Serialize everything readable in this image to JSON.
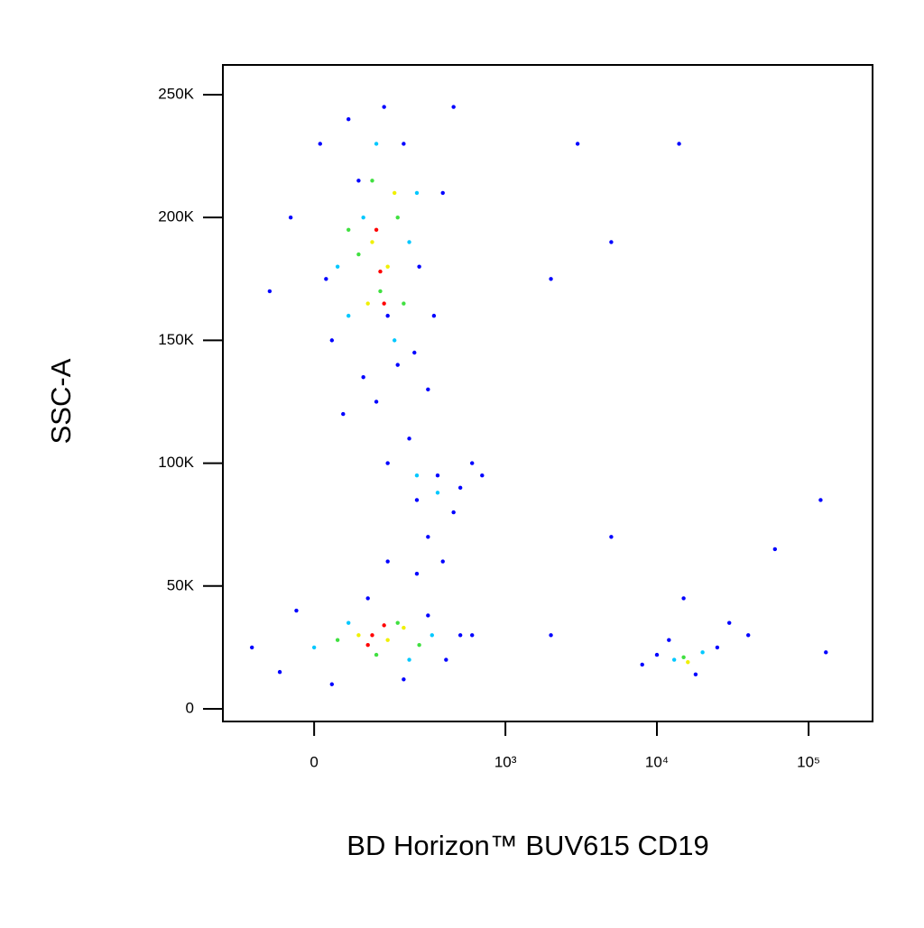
{
  "chart_data": {
    "type": "scatter",
    "x_label": "BD Horizon™ BUV615 CD19",
    "y_label": "SSC-A",
    "x_scale": "biexponential",
    "xlim": [
      -206,
      264000
    ],
    "ylim": [
      -5140,
      262100
    ],
    "xticks": [
      0,
      {
        "value": 1000,
        "label": "10³"
      },
      {
        "value": 10000,
        "label": "10⁴"
      },
      {
        "value": 100000,
        "label": "10⁵"
      }
    ],
    "yticks": [
      0,
      {
        "value": 50000,
        "label": "50K"
      },
      {
        "value": 100000,
        "label": "100K"
      },
      {
        "value": 150000,
        "label": "150K"
      },
      {
        "value": 200000,
        "label": "200K"
      },
      {
        "value": 250000,
        "label": "250K"
      }
    ],
    "series": [
      {
        "color": "#0000ff",
        "x": [
          -40,
          10,
          30,
          60,
          90,
          140,
          200,
          260,
          330,
          380,
          20,
          50,
          120,
          180,
          300,
          -80,
          450,
          80,
          240,
          150,
          150,
          250,
          350,
          450,
          600,
          220,
          300,
          500,
          380,
          700,
          -120,
          -60,
          -30,
          30,
          100,
          200,
          300,
          400,
          500,
          600,
          250,
          150,
          8000,
          12000,
          18000,
          25000,
          30000,
          15000,
          10000,
          40000,
          3000,
          5000,
          2000,
          60000,
          120000,
          130000,
          5000,
          14000,
          2000
        ],
        "y": [
          200000,
          230000,
          150000,
          240000,
          135000,
          245000,
          230000,
          180000,
          160000,
          210000,
          175000,
          120000,
          125000,
          140000,
          130000,
          170000,
          245000,
          215000,
          145000,
          160000,
          100000,
          85000,
          95000,
          80000,
          100000,
          110000,
          70000,
          90000,
          60000,
          95000,
          25000,
          15000,
          40000,
          10000,
          45000,
          12000,
          38000,
          20000,
          30000,
          30000,
          55000,
          60000,
          18000,
          28000,
          14000,
          25000,
          35000,
          45000,
          22000,
          30000,
          230000,
          190000,
          175000,
          65000,
          85000,
          23000,
          70000,
          230000,
          30000
        ]
      },
      {
        "color": "#00c8ff",
        "x": [
          40,
          90,
          170,
          220,
          120,
          60,
          250,
          250,
          350,
          0,
          60,
          220,
          320,
          13000,
          20000
        ],
        "y": [
          180000,
          200000,
          150000,
          190000,
          230000,
          160000,
          210000,
          95000,
          88000,
          25000,
          35000,
          20000,
          30000,
          20000,
          23000
        ]
      },
      {
        "color": "#40e040",
        "x": [
          80,
          130,
          180,
          110,
          200,
          60,
          40,
          120,
          180,
          260,
          15000
        ],
        "y": [
          185000,
          170000,
          200000,
          215000,
          165000,
          195000,
          28000,
          22000,
          35000,
          26000,
          21000
        ]
      },
      {
        "color": "#f0f000",
        "x": [
          110,
          150,
          100,
          170,
          80,
          150,
          200,
          16000
        ],
        "y": [
          190000,
          180000,
          165000,
          210000,
          30000,
          28000,
          33000,
          19000
        ]
      },
      {
        "color": "#ff0000",
        "x": [
          130,
          120,
          140,
          110,
          140,
          100
        ],
        "y": [
          178000,
          195000,
          165000,
          30000,
          34000,
          26000
        ]
      }
    ]
  }
}
